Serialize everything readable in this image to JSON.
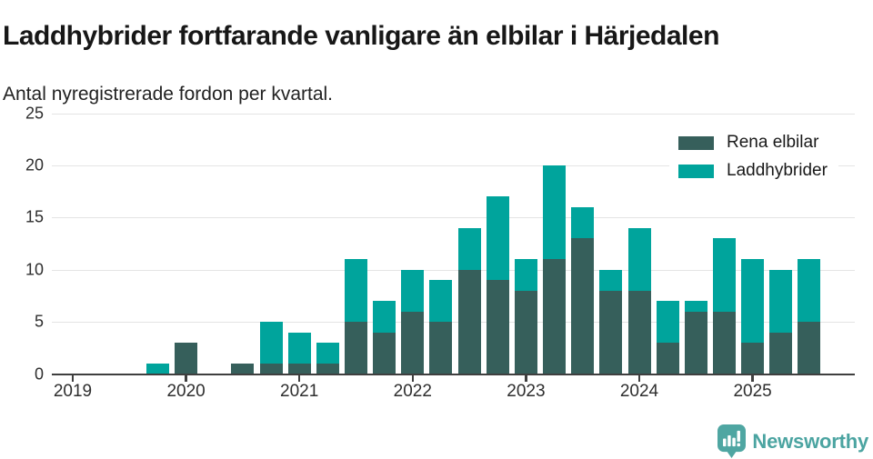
{
  "header": {
    "title": "Laddhybrider fortfarande vanligare än elbilar i Härjedalen",
    "subtitle": "Antal nyregistrerade fordon per kvartal."
  },
  "chart_data": {
    "type": "bar",
    "stacked": true,
    "title": "Laddhybrider fortfarande vanligare än elbilar i Härjedalen",
    "subtitle": "Antal nyregistrerade fordon per kvartal.",
    "categories": [
      "2019 Q1",
      "2019 Q2",
      "2019 Q3",
      "2019 Q4",
      "2020 Q1",
      "2020 Q2",
      "2020 Q3",
      "2020 Q4",
      "2021 Q1",
      "2021 Q2",
      "2021 Q3",
      "2021 Q4",
      "2022 Q1",
      "2022 Q2",
      "2022 Q3",
      "2022 Q4",
      "2023 Q1",
      "2023 Q2",
      "2023 Q3",
      "2023 Q4",
      "2024 Q1",
      "2024 Q2",
      "2024 Q3",
      "2024 Q4",
      "2025 Q1",
      "2025 Q2",
      "2025 Q3"
    ],
    "series": [
      {
        "name": "Rena elbilar",
        "color": "#365F5B",
        "values": [
          0,
          0,
          0,
          0,
          3,
          0,
          1,
          1,
          1,
          1,
          5,
          4,
          6,
          5,
          10,
          9,
          8,
          11,
          13,
          8,
          8,
          3,
          6,
          6,
          3,
          4,
          5
        ]
      },
      {
        "name": "Laddhybrider",
        "color": "#00A49C",
        "values": [
          0,
          0,
          0,
          1,
          0,
          0,
          0,
          4,
          3,
          2,
          6,
          3,
          4,
          4,
          4,
          8,
          3,
          9,
          3,
          2,
          6,
          4,
          1,
          7,
          8,
          6,
          6
        ]
      }
    ],
    "stacked_totals": [
      0,
      0,
      0,
      1,
      3,
      0,
      1,
      5,
      4,
      3,
      11,
      7,
      10,
      9,
      14,
      17,
      11,
      20,
      16,
      10,
      14,
      7,
      7,
      13,
      11,
      10,
      11
    ],
    "xlabel": "",
    "ylabel": "",
    "ylim": [
      0,
      25
    ],
    "yticks": [
      0,
      5,
      10,
      15,
      20,
      25
    ],
    "xtick_labels": [
      "2019",
      "2020",
      "2021",
      "2022",
      "2023",
      "2024",
      "2025"
    ],
    "grid": true,
    "legend_position": "top-right"
  },
  "footer": {
    "brand": "Newsworthy",
    "brand_color": "#4BA4A1"
  }
}
